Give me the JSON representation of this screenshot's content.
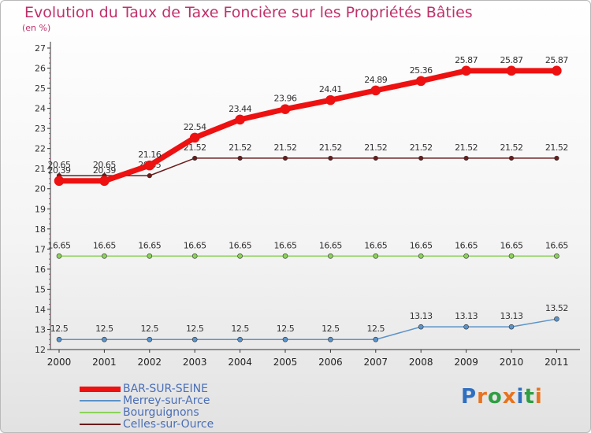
{
  "chart_data": {
    "type": "line",
    "title": "Evolution du Taux de Taxe Foncière sur les Propriétés Bâties",
    "subtitle": "(en %)",
    "x": [
      "2000",
      "2001",
      "2002",
      "2003",
      "2004",
      "2005",
      "2006",
      "2007",
      "2008",
      "2009",
      "2010",
      "2011"
    ],
    "ylim": [
      12,
      27
    ],
    "yticks": [
      12,
      13,
      14,
      15,
      16,
      17,
      18,
      19,
      20,
      21,
      22,
      23,
      24,
      25,
      26,
      27
    ],
    "series": [
      {
        "name": "Celles-sur-Ource",
        "color": "#6b1b1b",
        "width": 1.5,
        "marker": 2.8,
        "values": [
          20.65,
          20.65,
          20.65,
          21.52,
          21.52,
          21.52,
          21.52,
          21.52,
          21.52,
          21.52,
          21.52,
          21.52
        ],
        "labels": [
          "20.65",
          "20.65",
          "20.65",
          "21.52",
          "21.52",
          "21.52",
          "21.52",
          "21.52",
          "21.52",
          "21.52",
          "21.52",
          "21.52"
        ]
      },
      {
        "name": "Bourguignons",
        "color": "#8cd25a",
        "width": 1.5,
        "marker": 3,
        "values": [
          16.65,
          16.65,
          16.65,
          16.65,
          16.65,
          16.65,
          16.65,
          16.65,
          16.65,
          16.65,
          16.65,
          16.65
        ],
        "labels": [
          "16.65",
          "16.65",
          "16.65",
          "16.65",
          "16.65",
          "16.65",
          "16.65",
          "16.65",
          "16.65",
          "16.65",
          "16.65",
          "16.65"
        ]
      },
      {
        "name": "Merrey-sur-Arce",
        "color": "#5b93c9",
        "width": 1.5,
        "marker": 3,
        "values": [
          12.5,
          12.5,
          12.5,
          12.5,
          12.5,
          12.5,
          12.5,
          12.5,
          13.13,
          13.13,
          13.13,
          13.52
        ],
        "labels": [
          "12.5",
          "12.5",
          "12.5",
          "12.5",
          "12.5",
          "12.5",
          "12.5",
          "12.5",
          "13.13",
          "13.13",
          "13.13",
          "13.52"
        ]
      },
      {
        "name": "BAR-SUR-SEINE",
        "color": "#ee1111",
        "width": 7,
        "marker": 6,
        "values": [
          20.39,
          20.39,
          21.16,
          22.54,
          23.44,
          23.96,
          24.41,
          24.89,
          25.36,
          25.87,
          25.87,
          25.87
        ],
        "labels": [
          "20.39",
          "20.39",
          "21.16",
          "22.54",
          "23.44",
          "23.96",
          "24.41",
          "24.89",
          "25.36",
          "25.87",
          "25.87",
          "25.87"
        ]
      }
    ],
    "legend": [
      "BAR-SUR-SEINE",
      "Merrey-sur-Arce",
      "Bourguignons",
      "Celles-sur-Ource"
    ],
    "grid": false
  },
  "logo": {
    "text": "Proxiti",
    "letters": [
      "P",
      "r",
      "o",
      "x",
      "i",
      "t",
      "i"
    ],
    "colors": [
      "#2f6fc0",
      "#e8731e",
      "#2f9e44",
      "#e8731e",
      "#2f6fc0",
      "#2f9e44",
      "#e8731e"
    ]
  }
}
